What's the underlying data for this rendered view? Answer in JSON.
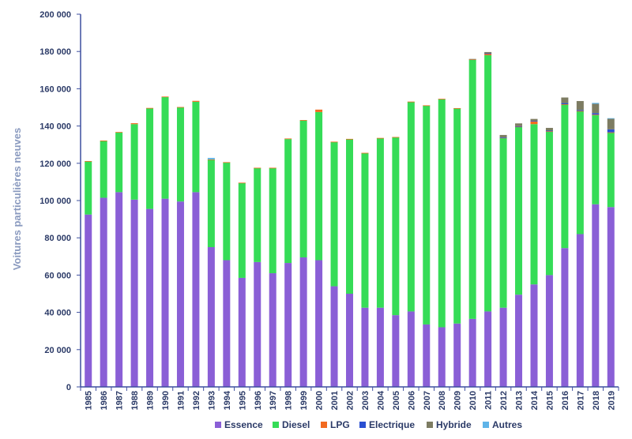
{
  "chart_data": {
    "type": "bar",
    "stacked": true,
    "title": "",
    "xlabel": "",
    "ylabel": "Voitures particulières neuves",
    "ylim": [
      0,
      200000
    ],
    "yticks": [
      "0",
      "20 000",
      "40 000",
      "60 000",
      "80 000",
      "100 000",
      "120 000",
      "140 000",
      "160 000",
      "180 000",
      "200 000"
    ],
    "grid": false,
    "legend_position": "bottom",
    "categories": [
      "1985",
      "1986",
      "1987",
      "1988",
      "1989",
      "1990",
      "1991",
      "1992",
      "1993",
      "1994",
      "1995",
      "1996",
      "1997",
      "1998",
      "1999",
      "2000",
      "2001",
      "2002",
      "2003",
      "2004",
      "2005",
      "2006",
      "2007",
      "2008",
      "2009",
      "2010",
      "2011",
      "2012",
      "2013",
      "2014",
      "2015",
      "2016",
      "2017",
      "2018",
      "2019"
    ],
    "series": [
      {
        "name": "Essence",
        "color": "#8a5fd6",
        "values": [
          92500,
          101500,
          104500,
          100500,
          95500,
          101000,
          99500,
          104500,
          75000,
          68000,
          58500,
          67000,
          61000,
          66500,
          69500,
          68000,
          54000,
          50000,
          42500,
          42500,
          38500,
          40500,
          33500,
          32000,
          34000,
          36500,
          40500,
          42500,
          49500,
          55000,
          60000,
          74500,
          82000,
          98000,
          96500
        ]
      },
      {
        "name": "Diesel",
        "color": "#35dc57",
        "values": [
          28500,
          30500,
          32000,
          40500,
          54000,
          54500,
          50500,
          48500,
          47000,
          52500,
          51000,
          50500,
          56500,
          66500,
          73500,
          79500,
          77500,
          83000,
          83000,
          91000,
          95500,
          112500,
          117500,
          122500,
          115500,
          139000,
          137500,
          91000,
          90000,
          86000,
          77000,
          77000,
          66000,
          48000,
          40000
        ]
      },
      {
        "name": "LPG",
        "color": "#f26a1f",
        "values": [
          200,
          200,
          300,
          500,
          200,
          300,
          200,
          500,
          100,
          100,
          100,
          100,
          100,
          300,
          200,
          1300,
          100,
          100,
          100,
          100,
          100,
          100,
          100,
          100,
          100,
          300,
          900,
          200,
          200,
          1500,
          200,
          200,
          100,
          100,
          100
        ]
      },
      {
        "name": "Electrique",
        "color": "#2a4fd1",
        "values": [
          0,
          0,
          0,
          0,
          0,
          0,
          0,
          0,
          0,
          0,
          0,
          0,
          0,
          0,
          0,
          0,
          0,
          0,
          0,
          0,
          0,
          0,
          0,
          0,
          0,
          0,
          100,
          100,
          200,
          300,
          300,
          600,
          500,
          800,
          1600
        ]
      },
      {
        "name": "Hybride",
        "color": "#7d7c62",
        "values": [
          0,
          0,
          0,
          0,
          0,
          0,
          0,
          0,
          0,
          0,
          0,
          0,
          0,
          0,
          0,
          0,
          0,
          0,
          0,
          0,
          0,
          0,
          0,
          0,
          0,
          200,
          700,
          1400,
          1500,
          1000,
          1500,
          3000,
          4800,
          5000,
          5700
        ]
      },
      {
        "name": "Autres",
        "color": "#5fb4e8",
        "values": [
          0,
          0,
          0,
          0,
          0,
          0,
          0,
          0,
          800,
          0,
          0,
          0,
          0,
          0,
          0,
          0,
          0,
          0,
          0,
          0,
          0,
          0,
          0,
          0,
          0,
          0,
          0,
          0,
          0,
          0,
          0,
          0,
          0,
          500,
          300
        ]
      }
    ]
  }
}
